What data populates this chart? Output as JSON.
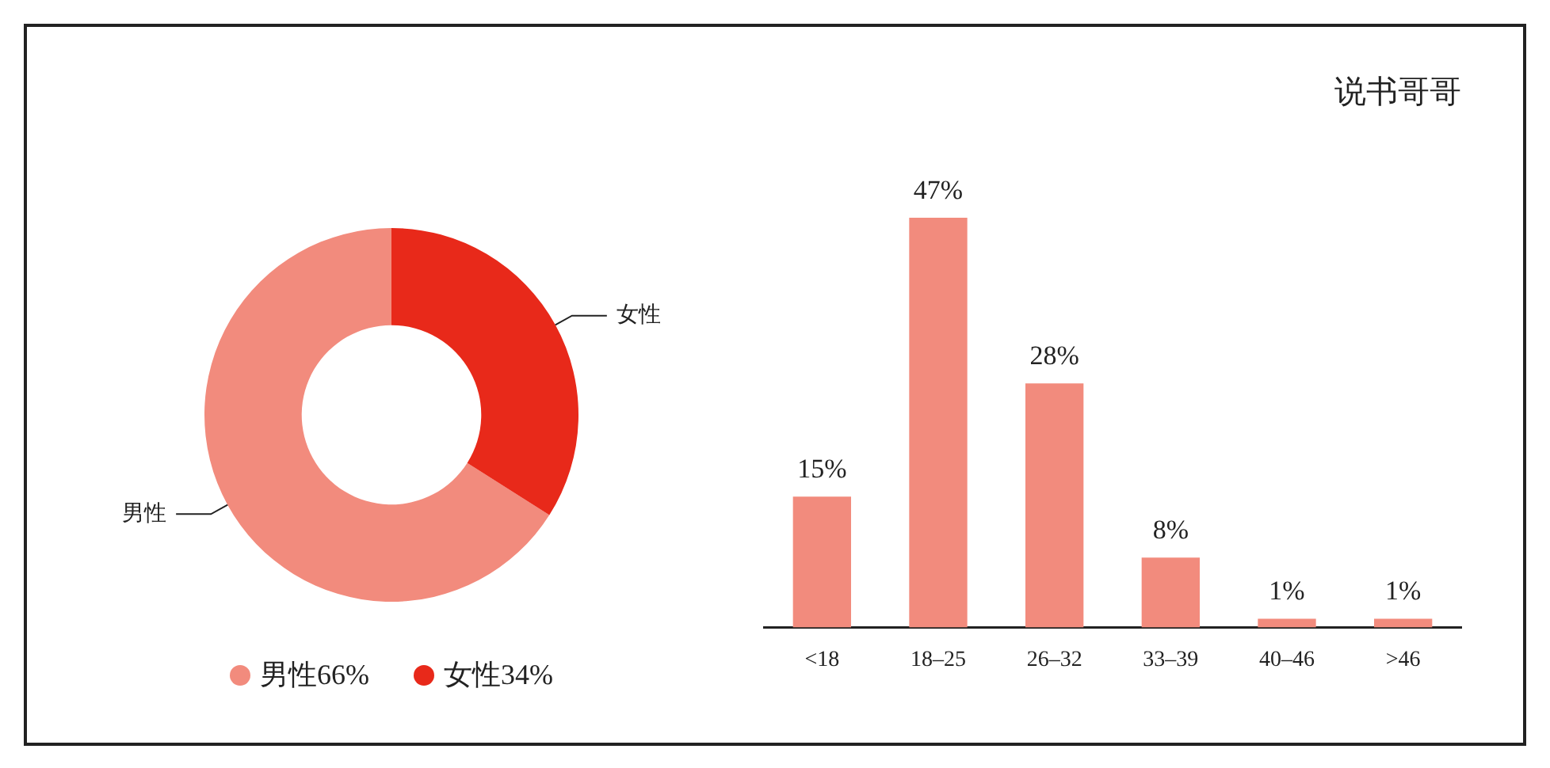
{
  "chart_data": [
    {
      "type": "donut",
      "categories": [
        "男性",
        "女性"
      ],
      "values": [
        66,
        34
      ],
      "colors": [
        "#f28b7d",
        "#e8291a"
      ],
      "value_labels": [
        "66%",
        "34%"
      ],
      "legend": "bottom"
    },
    {
      "type": "bar",
      "title": "说书哥哥",
      "categories": [
        "<18",
        "18–25",
        "26–32",
        "33–39",
        "40–46",
        ">46"
      ],
      "values": [
        15,
        47,
        28,
        8,
        1,
        1
      ],
      "color": "#f28b7d",
      "value_labels": [
        "15%",
        "47%",
        "28%",
        "8%",
        "1%",
        "1%"
      ],
      "grid": false,
      "legend": false
    }
  ]
}
